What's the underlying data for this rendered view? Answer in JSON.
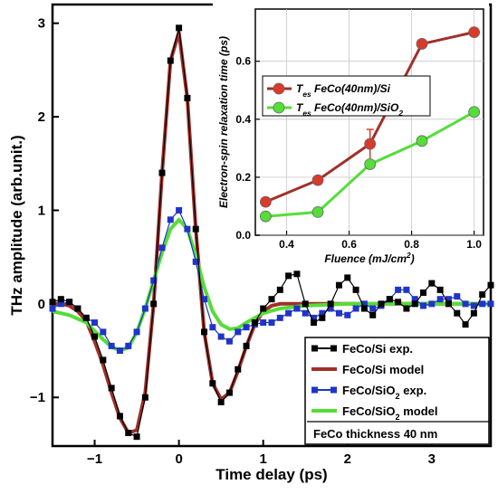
{
  "chart_data": [
    {
      "type": "line",
      "xlabel": "Time delay (ps)",
      "ylabel": "THz amplitude (arb.unit.)",
      "xlim": [
        -1.5,
        3.7
      ],
      "ylim": [
        -1.52,
        3.2
      ],
      "xticks": [
        -1,
        0,
        1,
        2,
        3
      ],
      "yticks": [
        -1,
        0,
        1,
        2,
        3
      ],
      "xtick_labels": [
        "−1",
        "0",
        "1",
        "2",
        "3"
      ],
      "ytick_labels": [
        "−1",
        "0",
        "1",
        "2",
        "3"
      ],
      "legend_position": "bottom-right",
      "legend_note": "FeCo thickness 40 nm",
      "series": [
        {
          "name_parts": [
            "FeCo/Si exp.",
            ""
          ],
          "color": "#000000",
          "marker": "square",
          "x": [
            -1.5,
            -1.4,
            -1.3,
            -1.2,
            -1.1,
            -1.0,
            -0.9,
            -0.8,
            -0.7,
            -0.6,
            -0.5,
            -0.4,
            -0.3,
            -0.2,
            -0.1,
            0.0,
            0.1,
            0.2,
            0.3,
            0.4,
            0.5,
            0.6,
            0.7,
            0.8,
            0.9,
            1.0,
            1.1,
            1.2,
            1.3,
            1.4,
            1.5,
            1.6,
            1.7,
            1.8,
            1.9,
            2.0,
            2.1,
            2.2,
            2.3,
            2.4,
            2.5,
            2.6,
            2.7,
            2.8,
            2.9,
            3.0,
            3.1,
            3.2,
            3.3,
            3.4,
            3.5,
            3.6,
            3.7
          ],
          "y": [
            0.02,
            0.05,
            0.02,
            -0.05,
            -0.15,
            -0.35,
            -0.6,
            -0.9,
            -1.2,
            -1.38,
            -1.42,
            -1.0,
            0.0,
            1.4,
            2.6,
            2.95,
            2.2,
            0.8,
            -0.3,
            -0.85,
            -1.05,
            -0.95,
            -0.7,
            -0.45,
            -0.2,
            -0.05,
            0.05,
            0.15,
            0.3,
            0.32,
            0.0,
            -0.2,
            -0.15,
            0.0,
            0.2,
            0.28,
            0.15,
            -0.05,
            -0.12,
            0.0,
            0.05,
            0.02,
            -0.05,
            0.0,
            0.12,
            0.22,
            0.15,
            0.0,
            -0.1,
            -0.22,
            -0.1,
            0.1,
            0.2
          ]
        },
        {
          "name_parts": [
            "FeCo/Si model",
            ""
          ],
          "color": "#a0302a",
          "marker": "none",
          "x": [
            -1.5,
            -1.4,
            -1.3,
            -1.2,
            -1.1,
            -1.0,
            -0.9,
            -0.8,
            -0.7,
            -0.6,
            -0.5,
            -0.4,
            -0.3,
            -0.2,
            -0.1,
            0.0,
            0.1,
            0.2,
            0.3,
            0.4,
            0.5,
            0.6,
            0.7,
            0.8,
            0.9,
            1.0,
            1.1,
            1.2,
            1.3,
            1.4,
            1.6,
            1.8,
            2.0,
            2.5,
            3.0,
            3.5,
            3.7
          ],
          "y": [
            0.0,
            0.0,
            -0.02,
            -0.08,
            -0.18,
            -0.4,
            -0.65,
            -0.95,
            -1.22,
            -1.38,
            -1.35,
            -0.95,
            0.0,
            1.4,
            2.6,
            2.9,
            2.2,
            0.8,
            -0.3,
            -0.85,
            -1.02,
            -0.95,
            -0.72,
            -0.45,
            -0.22,
            -0.08,
            -0.02,
            0.0,
            0.0,
            0.0,
            0.0,
            0.0,
            0.0,
            0.0,
            0.0,
            0.0,
            0.0
          ]
        },
        {
          "name_parts": [
            "FeCo/SiO",
            "2",
            " exp."
          ],
          "color": "#1f35c8",
          "marker": "square",
          "x": [
            -1.5,
            -1.4,
            -1.3,
            -1.2,
            -1.1,
            -1.0,
            -0.9,
            -0.8,
            -0.7,
            -0.6,
            -0.5,
            -0.4,
            -0.3,
            -0.2,
            -0.1,
            0.0,
            0.1,
            0.2,
            0.3,
            0.4,
            0.5,
            0.6,
            0.7,
            0.8,
            0.9,
            1.0,
            1.1,
            1.2,
            1.3,
            1.4,
            1.5,
            1.6,
            1.7,
            1.8,
            1.9,
            2.0,
            2.1,
            2.2,
            2.3,
            2.4,
            2.5,
            2.6,
            2.7,
            2.8,
            2.9,
            3.0,
            3.1,
            3.2,
            3.3,
            3.4,
            3.5,
            3.6,
            3.7
          ],
          "y": [
            -0.05,
            0.0,
            0.02,
            -0.05,
            -0.15,
            -0.2,
            -0.3,
            -0.45,
            -0.5,
            -0.45,
            -0.3,
            -0.05,
            0.25,
            0.6,
            0.9,
            1.0,
            0.8,
            0.45,
            0.05,
            -0.25,
            -0.35,
            -0.4,
            -0.3,
            -0.25,
            -0.22,
            -0.2,
            -0.2,
            -0.15,
            -0.1,
            -0.05,
            -0.1,
            -0.15,
            -0.1,
            -0.05,
            -0.1,
            -0.12,
            -0.05,
            0.0,
            -0.05,
            -0.02,
            0.05,
            0.15,
            0.15,
            0.05,
            -0.02,
            0.0,
            0.05,
            0.05,
            0.08,
            0.0,
            -0.02,
            0.0,
            0.0
          ]
        },
        {
          "name_parts": [
            "FeCo/SiO",
            "2",
            " model"
          ],
          "color": "#55dd38",
          "marker": "none",
          "x": [
            -1.5,
            -1.3,
            -1.1,
            -0.9,
            -0.8,
            -0.7,
            -0.6,
            -0.5,
            -0.4,
            -0.3,
            -0.2,
            -0.1,
            0.0,
            0.1,
            0.2,
            0.3,
            0.4,
            0.5,
            0.6,
            0.7,
            0.8,
            0.9,
            1.0,
            1.2,
            1.5,
            2.0,
            2.5,
            3.0,
            3.7
          ],
          "y": [
            -0.08,
            -0.12,
            -0.2,
            -0.38,
            -0.46,
            -0.5,
            -0.47,
            -0.3,
            -0.05,
            0.25,
            0.55,
            0.8,
            0.9,
            0.8,
            0.52,
            0.18,
            -0.08,
            -0.22,
            -0.27,
            -0.26,
            -0.2,
            -0.15,
            -0.1,
            -0.05,
            -0.02,
            0.0,
            0.0,
            0.0,
            0.0
          ]
        }
      ]
    },
    {
      "type": "line",
      "xlabel_parts": [
        "Fluence (mJ/cm",
        "2",
        ")"
      ],
      "ylabel": "Electron-spin relaxation time (ps)",
      "xlim": [
        0.3,
        1.03
      ],
      "ylim": [
        0.0,
        0.78
      ],
      "xticks": [
        0.4,
        0.6,
        0.8,
        1.0
      ],
      "yticks": [
        0.0,
        0.2,
        0.4,
        0.6
      ],
      "xtick_labels": [
        "0.4",
        "0.6",
        "0.8",
        "1.0"
      ],
      "ytick_labels": [
        "0.0",
        "0.2",
        "0.4",
        "0.6"
      ],
      "legend_position": "top-left",
      "series": [
        {
          "name_parts": [
            "T",
            "es",
            " FeCo(40nm)/Si",
            "",
            ""
          ],
          "color": "#a0302a",
          "marker_color": "#d93a2a",
          "x": [
            0.333,
            0.5,
            0.667,
            0.833,
            1.0
          ],
          "y": [
            0.115,
            0.19,
            0.315,
            0.66,
            0.7
          ],
          "error_index": 2,
          "error": 0.05
        },
        {
          "name_parts": [
            "T",
            "es",
            " FeCo(40nm)/SiO",
            "2",
            ""
          ],
          "color": "#55dd38",
          "marker_color": "#55dd38",
          "x": [
            0.333,
            0.5,
            0.667,
            0.833,
            1.0
          ],
          "y": [
            0.065,
            0.08,
            0.245,
            0.325,
            0.425
          ]
        }
      ]
    }
  ]
}
